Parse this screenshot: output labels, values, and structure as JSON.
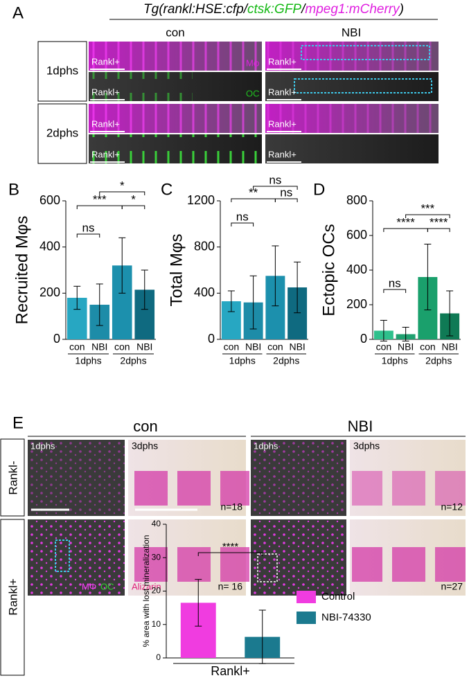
{
  "panel_a": {
    "letter": "A",
    "title_parts": [
      "Tg(rankl:HSE:cfp/",
      "ctsk:GFP",
      "/",
      "mpeg1:mCherry",
      ")"
    ],
    "columns": [
      "con",
      "NBI"
    ],
    "rows": [
      "1dphs",
      "2dphs"
    ],
    "image_label": "Rankl+",
    "channel_labels": [
      "Mφ",
      "OC"
    ]
  },
  "panel_e": {
    "letter": "E",
    "columns": [
      "con",
      "NBI"
    ],
    "rows": [
      "Rankl-",
      "Rankl+"
    ],
    "timepoints": [
      "1dphs",
      "3dphs"
    ],
    "counts": [
      "n=18",
      "n=12",
      "n= 16",
      "n=27"
    ],
    "stain_labels": [
      "MΦ",
      "OC",
      "Alizarin"
    ]
  },
  "chart_data": [
    {
      "type": "bar",
      "panel": "B",
      "ylabel": "Recruited Mφs",
      "categories": [
        "con",
        "NBI",
        "con",
        "NBI"
      ],
      "groups": [
        "1dphs",
        "2dphs"
      ],
      "values": [
        180,
        150,
        320,
        215
      ],
      "errors": [
        50,
        90,
        120,
        85
      ],
      "colors": [
        "#27a7c2",
        "#1d8ca8",
        "#1c90ad",
        "#0f6a80"
      ],
      "ylim": [
        0,
        600
      ],
      "yticks": [
        0,
        200,
        400,
        600
      ],
      "annotations": [
        "ns",
        "***",
        "*",
        "*"
      ]
    },
    {
      "type": "bar",
      "panel": "C",
      "ylabel": "Total Mφs",
      "categories": [
        "con",
        "NBI",
        "con",
        "NBI"
      ],
      "groups": [
        "1dphs",
        "2dphs"
      ],
      "values": [
        330,
        320,
        550,
        450
      ],
      "errors": [
        90,
        230,
        260,
        220
      ],
      "colors": [
        "#27a7c2",
        "#1d8ca8",
        "#1c90ad",
        "#0f6a80"
      ],
      "ylim": [
        0,
        1200
      ],
      "yticks": [
        0,
        400,
        800,
        1200
      ],
      "annotations": [
        "ns",
        "**",
        "ns",
        "ns"
      ]
    },
    {
      "type": "bar",
      "panel": "D",
      "ylabel": "Ectopic OCs",
      "categories": [
        "con",
        "NBI",
        "con",
        "NBI"
      ],
      "groups": [
        "1dphs",
        "2dphs"
      ],
      "values": [
        50,
        30,
        360,
        150
      ],
      "errors": [
        60,
        40,
        190,
        130
      ],
      "colors": [
        "#2fc08c",
        "#20a070",
        "#1aa06c",
        "#0f7a55"
      ],
      "ylim": [
        0,
        800
      ],
      "yticks": [
        0,
        200,
        400,
        600,
        800
      ],
      "annotations": [
        "ns",
        "****",
        "****",
        "***"
      ]
    },
    {
      "type": "bar",
      "ylabel": "% area with lost mineralization",
      "xlabel": "Rankl+",
      "categories": [
        "Control",
        "NBI-74330"
      ],
      "values": [
        16.5,
        6.3
      ],
      "errors": [
        7,
        8
      ],
      "colors": [
        "#f03ce0",
        "#1b7a8f"
      ],
      "ylim": [
        0,
        40
      ],
      "yticks": [
        0,
        10,
        20,
        30,
        40
      ],
      "annotations": [
        "****"
      ]
    }
  ]
}
